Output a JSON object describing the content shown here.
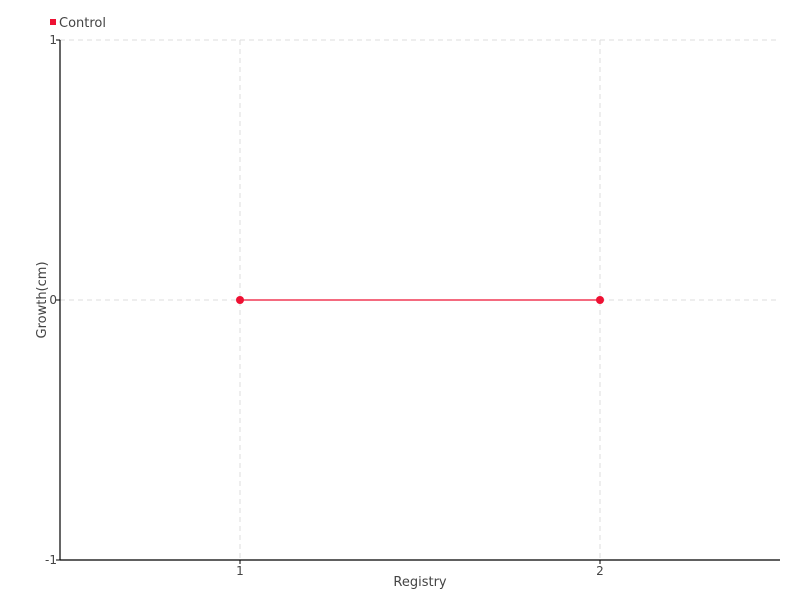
{
  "chart_data": {
    "type": "line",
    "title": "",
    "xlabel": "Registry",
    "ylabel": "Growth(cm)",
    "x": [
      1,
      2
    ],
    "xlim": [
      0.5,
      2.5
    ],
    "ylim": [
      -1,
      1
    ],
    "xticks": [
      1,
      2
    ],
    "yticks": [
      -1,
      0,
      1
    ],
    "grid": true,
    "legend_placement": "top-left",
    "series": [
      {
        "name": "Control",
        "color": "#ee1133",
        "values": [
          0,
          0
        ]
      }
    ]
  }
}
